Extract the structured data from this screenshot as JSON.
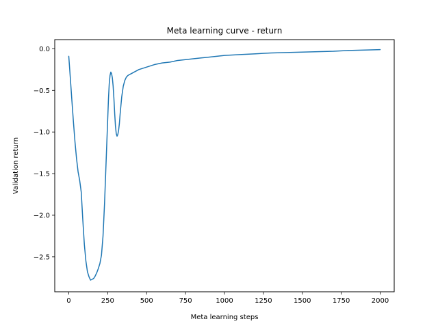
{
  "chart_data": {
    "type": "line",
    "title": "Meta learning curve - return",
    "xlabel": "Meta learning steps",
    "ylabel": "Validation return",
    "xlim": [
      -90,
      2090
    ],
    "ylim": [
      -2.92,
      0.11
    ],
    "xticks": [
      0,
      250,
      500,
      750,
      1000,
      1250,
      1500,
      1750,
      2000
    ],
    "xtick_labels": [
      "0",
      "250",
      "500",
      "750",
      "1000",
      "1250",
      "1500",
      "1750",
      "2000"
    ],
    "yticks": [
      0.0,
      -0.5,
      -1.0,
      -1.5,
      -2.0,
      -2.5
    ],
    "ytick_labels": [
      "0.0",
      "−0.5",
      "−1.0",
      "−1.5",
      "−2.0",
      "−2.5"
    ],
    "grid": false,
    "legend": null,
    "series": [
      {
        "color": "#1f77b4",
        "x": [
          0,
          10,
          20,
          30,
          40,
          50,
          60,
          70,
          80,
          90,
          100,
          110,
          120,
          130,
          140,
          150,
          160,
          170,
          180,
          190,
          200,
          210,
          220,
          230,
          240,
          250,
          255,
          260,
          265,
          270,
          275,
          280,
          285,
          290,
          295,
          300,
          305,
          310,
          315,
          320,
          325,
          330,
          340,
          350,
          360,
          370,
          380,
          400,
          450,
          500,
          550,
          600,
          650,
          700,
          750,
          800,
          850,
          900,
          950,
          1000,
          1100,
          1200,
          1300,
          1400,
          1500,
          1600,
          1700,
          1800,
          1900,
          2000
        ],
        "y": [
          -0.09,
          -0.35,
          -0.62,
          -0.88,
          -1.12,
          -1.32,
          -1.48,
          -1.58,
          -1.72,
          -2.05,
          -2.35,
          -2.55,
          -2.68,
          -2.74,
          -2.78,
          -2.77,
          -2.76,
          -2.73,
          -2.69,
          -2.64,
          -2.58,
          -2.48,
          -2.25,
          -1.85,
          -1.35,
          -0.85,
          -0.6,
          -0.42,
          -0.32,
          -0.28,
          -0.3,
          -0.35,
          -0.45,
          -0.6,
          -0.78,
          -0.93,
          -1.02,
          -1.05,
          -1.03,
          -0.98,
          -0.9,
          -0.78,
          -0.58,
          -0.45,
          -0.38,
          -0.34,
          -0.32,
          -0.3,
          -0.25,
          -0.22,
          -0.19,
          -0.17,
          -0.16,
          -0.14,
          -0.13,
          -0.12,
          -0.11,
          -0.1,
          -0.09,
          -0.08,
          -0.07,
          -0.06,
          -0.05,
          -0.045,
          -0.04,
          -0.035,
          -0.03,
          -0.02,
          -0.015,
          -0.01
        ]
      }
    ]
  }
}
